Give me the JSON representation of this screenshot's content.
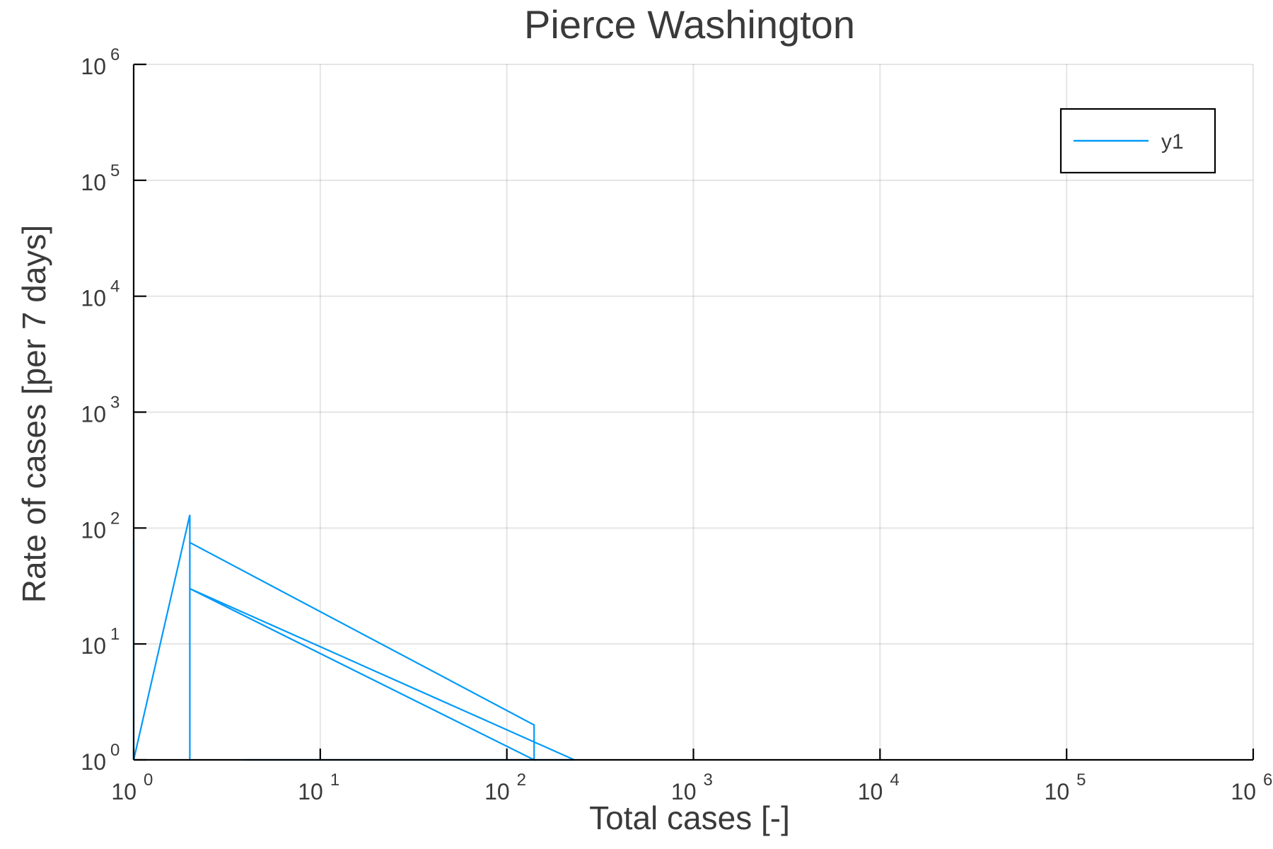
{
  "chart_data": {
    "type": "line",
    "title": "Pierce Washington",
    "xlabel": "Total cases [-]",
    "ylabel": "Rate of cases [per 7 days]",
    "xscale": "log10",
    "yscale": "log10",
    "xlim": [
      1,
      1000000
    ],
    "ylim": [
      1,
      1000000
    ],
    "x_ticks": [
      {
        "base": "10",
        "exp": "0"
      },
      {
        "base": "10",
        "exp": "1"
      },
      {
        "base": "10",
        "exp": "2"
      },
      {
        "base": "10",
        "exp": "3"
      },
      {
        "base": "10",
        "exp": "4"
      },
      {
        "base": "10",
        "exp": "5"
      },
      {
        "base": "10",
        "exp": "6"
      }
    ],
    "y_ticks": [
      {
        "base": "10",
        "exp": "0"
      },
      {
        "base": "10",
        "exp": "1"
      },
      {
        "base": "10",
        "exp": "2"
      },
      {
        "base": "10",
        "exp": "3"
      },
      {
        "base": "10",
        "exp": "4"
      },
      {
        "base": "10",
        "exp": "5"
      },
      {
        "base": "10",
        "exp": "6"
      }
    ],
    "grid": true,
    "legend_position": "top-right",
    "series": [
      {
        "name": "y1",
        "color": "#009af9",
        "x": [
          1,
          1,
          2,
          2,
          2,
          2,
          140,
          140,
          2,
          2,
          230,
          4
        ],
        "y": [
          80,
          1,
          130,
          1,
          75,
          75,
          2,
          1,
          30,
          30,
          1,
          1
        ]
      }
    ]
  }
}
